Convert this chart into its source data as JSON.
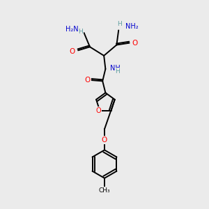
{
  "background_color": "#ebebeb",
  "atom_colors": {
    "C": "#000000",
    "H": "#5f9ea0",
    "N": "#0000cd",
    "O": "#ff0000"
  },
  "bond_color": "#000000",
  "bond_width": 1.4,
  "figsize": [
    3.0,
    3.0
  ],
  "dpi": 100,
  "xlim": [
    0.5,
    5.5
  ],
  "ylim": [
    0.0,
    10.5
  ]
}
